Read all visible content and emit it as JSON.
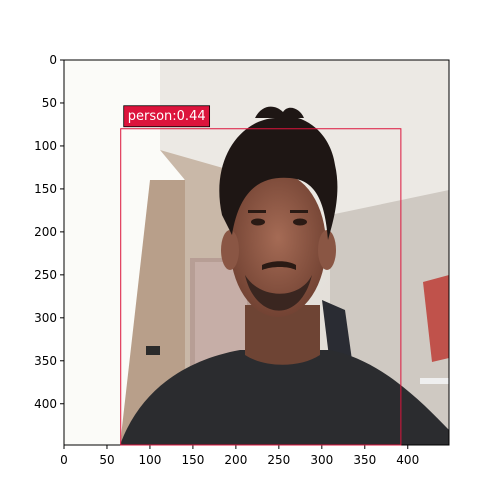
{
  "figure": {
    "image_description": "webcam photo",
    "x_ticks": [
      "0",
      "50",
      "100",
      "150",
      "200",
      "250",
      "300",
      "350",
      "400"
    ],
    "y_ticks": [
      "0",
      "50",
      "100",
      "150",
      "200",
      "250",
      "300",
      "350",
      "400"
    ],
    "x_range": [
      0,
      448
    ],
    "y_range": [
      0,
      448
    ]
  },
  "detection": {
    "label": "person:0.44",
    "box": {
      "x_min": 66,
      "y_min": 80,
      "x_max": 392,
      "y_max": 448
    },
    "color": "#dc143c"
  }
}
